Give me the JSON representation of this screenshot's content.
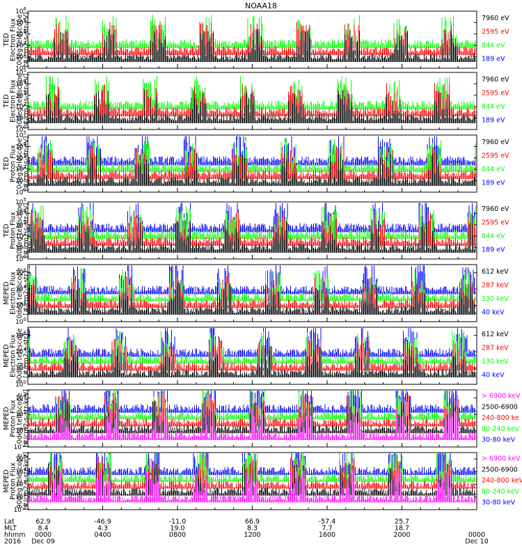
{
  "title": "NOAA18",
  "colors": {
    "black": "#000000",
    "red": "#ff0000",
    "green": "#00ff00",
    "blue": "#0000ff",
    "magenta": "#ff00ff",
    "frame": "#000000"
  },
  "chart_data": [
    {
      "type": "line",
      "title": "NOAA18",
      "ylabel": [
        "TED",
        "Electron Flux",
        "0deg telescope",
        "[#/cm2-s-str-eV]"
      ],
      "ytick_exponents": [
        1,
        2,
        3,
        4,
        5,
        6
      ],
      "ylim_exp": [
        1,
        6
      ],
      "series": [
        {
          "name": "7960 eV",
          "color": "#000000"
        },
        {
          "name": "2595 eV",
          "color": "#ff0000"
        },
        {
          "name": "844 eV",
          "color": "#00ff00"
        },
        {
          "name": "189 eV",
          "color": "#0000ff"
        }
      ],
      "grid": false,
      "legend": "right"
    },
    {
      "type": "line",
      "ylabel": [
        "TED",
        "Electron Flux",
        "30deg telescope",
        "[#/cm2-s-str-eV]"
      ],
      "ytick_exponents": [
        0,
        1,
        2,
        3,
        4,
        5
      ],
      "ylim_exp": [
        0,
        5
      ],
      "series": [
        {
          "name": "7960 eV",
          "color": "#000000"
        },
        {
          "name": "2595 eV",
          "color": "#ff0000"
        },
        {
          "name": "844 eV",
          "color": "#00ff00"
        },
        {
          "name": "189 eV",
          "color": "#0000ff"
        }
      ],
      "grid": false,
      "legend": "right"
    },
    {
      "type": "line",
      "ylabel": [
        "TED",
        "Proton Flux",
        "0deg telescope",
        "[#/cm2-s-str-eV]"
      ],
      "ytick_exponents": [
        0,
        1,
        2,
        3,
        4,
        5
      ],
      "ylim_exp": [
        0,
        5
      ],
      "series": [
        {
          "name": "7960 eV",
          "color": "#000000"
        },
        {
          "name": "2595 eV",
          "color": "#ff0000"
        },
        {
          "name": "844 eV",
          "color": "#00ff00"
        },
        {
          "name": "189 eV",
          "color": "#0000ff"
        }
      ],
      "grid": false,
      "legend": "right"
    },
    {
      "type": "line",
      "ylabel": [
        "TED",
        "Proton Flux",
        "30deg telescope",
        "[#/cm2-s-str-eV]"
      ],
      "ytick_exponents": [
        0,
        1,
        2,
        3,
        4,
        5
      ],
      "ylim_exp": [
        0,
        5
      ],
      "series": [
        {
          "name": "7960 eV",
          "color": "#000000"
        },
        {
          "name": "2595 eV",
          "color": "#ff0000"
        },
        {
          "name": "844 eV",
          "color": "#00ff00"
        },
        {
          "name": "189 eV",
          "color": "#0000ff"
        }
      ],
      "grid": false,
      "legend": "right"
    },
    {
      "type": "line",
      "ylabel": [
        "MEPED",
        "Electron Flux",
        "0deg telescope",
        "[#/cm2-s-str]"
      ],
      "ytick_exponents": [
        0,
        2,
        4,
        6
      ],
      "ylim_exp": [
        0,
        7
      ],
      "series": [
        {
          "name": "612 keV",
          "color": "#000000"
        },
        {
          "name": "287 keV",
          "color": "#ff0000"
        },
        {
          "name": "130 keV",
          "color": "#00ff00"
        },
        {
          "name": "40 keV",
          "color": "#0000ff"
        }
      ],
      "grid": false,
      "legend": "right"
    },
    {
      "type": "line",
      "ylabel": [
        "MEPED",
        "Electron Flux",
        "90deg telescope",
        "[#/cm2-s-str]"
      ],
      "ytick_exponents": [
        0,
        2,
        4,
        6
      ],
      "ylim_exp": [
        0,
        7
      ],
      "series": [
        {
          "name": "612 keV",
          "color": "#000000"
        },
        {
          "name": "287 keV",
          "color": "#ff0000"
        },
        {
          "name": "130 keV",
          "color": "#00ff00"
        },
        {
          "name": "40 keV",
          "color": "#0000ff"
        }
      ],
      "grid": false,
      "legend": "right"
    },
    {
      "type": "line",
      "ylabel": [
        "MEPED",
        "Proton Flux",
        "0deg telescope",
        "[#/cm2-s-str-keV]"
      ],
      "ytick_exponents": [
        -2,
        0,
        2,
        4
      ],
      "ylim_exp": [
        -2,
        5
      ],
      "series": [
        {
          "name": "> 6900 keV",
          "color": "#ff00ff"
        },
        {
          "name": "2500-6900",
          "color": "#000000"
        },
        {
          "name": "240-800 ke",
          "color": "#ff0000"
        },
        {
          "name": "80-240 keV",
          "color": "#00ff00"
        },
        {
          "name": "30-80 keV",
          "color": "#0000ff"
        }
      ],
      "grid": false,
      "legend": "right"
    },
    {
      "type": "line",
      "ylabel": [
        "MEPED",
        "Proton Flux",
        "90deg telescope",
        "[#/cm2-s-str-keV]"
      ],
      "ytick_exponents": [
        -2,
        0,
        2,
        4,
        6
      ],
      "ylim_exp": [
        -2,
        7
      ],
      "series": [
        {
          "name": "> 6900 keV",
          "color": "#ff00ff"
        },
        {
          "name": "2500-6900",
          "color": "#000000"
        },
        {
          "name": "240-800 keV",
          "color": "#ff0000"
        },
        {
          "name": "80-240 keV",
          "color": "#00ff00"
        },
        {
          "name": "30-80 keV",
          "color": "#0000ff"
        }
      ],
      "grid": false,
      "legend": "right"
    }
  ],
  "footer": {
    "row_labels": [
      "Lat",
      "MLT",
      "hhmm",
      "2016"
    ],
    "columns": [
      {
        "lat": "62.9",
        "mlt": "8.4",
        "hhmm": "0000",
        "date": "Dec 09"
      },
      {
        "lat": "-46.9",
        "mlt": "4.3",
        "hhmm": "0400",
        "date": ""
      },
      {
        "lat": "-11.0",
        "mlt": "19.0",
        "hhmm": "0800",
        "date": ""
      },
      {
        "lat": "66.9",
        "mlt": "8.3",
        "hhmm": "1200",
        "date": ""
      },
      {
        "lat": "-57.4",
        "mlt": "7.7",
        "hhmm": "1600",
        "date": ""
      },
      {
        "lat": "25.7",
        "mlt": "18.7",
        "hhmm": "2000",
        "date": ""
      },
      {
        "lat": "",
        "mlt": "",
        "hhmm": "0000",
        "date": "Dec 10"
      }
    ]
  }
}
